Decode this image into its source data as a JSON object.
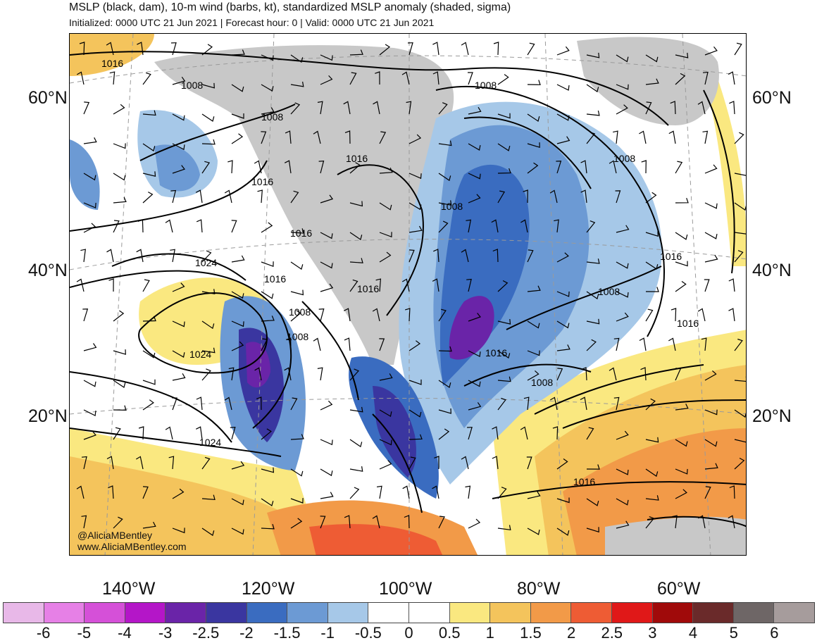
{
  "header": {
    "title": "MSLP (black, dam), 10-m wind (barbs, kt), standardized MSLP anomaly (shaded, sigma)",
    "subtitle": "Initialized: 0000 UTC 21 Jun 2021 | Forecast hour: 0 | Valid: 0000 UTC 21 Jun 2021"
  },
  "map": {
    "lat_labels": [
      "60°N",
      "40°N",
      "20°N"
    ],
    "lon_labels": [
      "140°W",
      "120°W",
      "100°W",
      "80°W",
      "60°W"
    ],
    "isobar_labels": [
      "1016",
      "1008",
      "1008",
      "1016",
      "1016",
      "1008",
      "1016",
      "1024",
      "1016",
      "1008",
      "1008",
      "1016",
      "1024",
      "1008",
      "1008",
      "1016",
      "1008",
      "1016",
      "1024",
      "1016",
      "1008",
      "1016"
    ]
  },
  "credits": {
    "handle": "@AliciaMBentley",
    "website": "www.AliciaMBentley.com"
  },
  "colorbar": {
    "colors": [
      "#e8b8e8",
      "#e680e6",
      "#d550d8",
      "#b416c8",
      "#6a24a8",
      "#3a36a0",
      "#3a6cc0",
      "#6c9ad4",
      "#a6c8e8",
      "#ffffff",
      "#ffffff",
      "#fae880",
      "#f4c45c",
      "#f29a48",
      "#ee5c34",
      "#e01818",
      "#a00a0a",
      "#6a2a2a",
      "#6e6666",
      "#a69c9c"
    ],
    "ticks": [
      "-6",
      "-5",
      "-4",
      "-3",
      "-2.5",
      "-2",
      "-1.5",
      "-1",
      "-0.5",
      "0",
      "0.5",
      "1",
      "1.5",
      "2",
      "2.5",
      "3",
      "4",
      "5",
      "6"
    ]
  },
  "palette": {
    "land_gray": "#c8c8c8",
    "yellow": "#fae880",
    "tan": "#f4c45c",
    "orange": "#f29a48",
    "red_orange": "#ee5c34",
    "red": "#e01818",
    "light_blue": "#a6c8e8",
    "mid_blue": "#6c9ad4",
    "blue": "#3a6cc0",
    "dark_blue": "#3a36a0",
    "purple": "#6a24a8"
  }
}
